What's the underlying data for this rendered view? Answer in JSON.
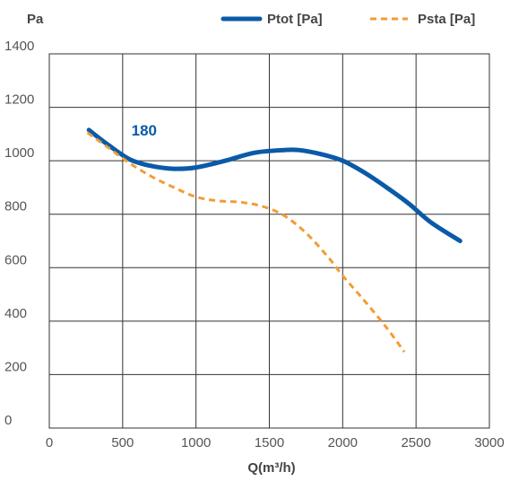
{
  "chart_data": {
    "type": "line",
    "title": "",
    "xlabel": "Q(m³/h)",
    "ylabel": "Pa",
    "xlim": [
      0,
      3000
    ],
    "ylim": [
      0,
      1400
    ],
    "x_ticks": [
      "0",
      "500",
      "1000",
      "1500",
      "2000",
      "2500",
      "3000"
    ],
    "y_ticks": [
      "0",
      "200",
      "400",
      "600",
      "800",
      "1000",
      "1200",
      "1400"
    ],
    "grid": true,
    "legend_position": "top-right",
    "annotation": {
      "text": "180",
      "x": 560,
      "y": 1095,
      "color": "#0a5aa8"
    },
    "series": [
      {
        "name": "Ptot [Pa]",
        "color": "#0a5aa8",
        "style": "solid",
        "points": [
          [
            270,
            1115
          ],
          [
            400,
            1060
          ],
          [
            550,
            1005
          ],
          [
            700,
            980
          ],
          [
            850,
            970
          ],
          [
            1000,
            975
          ],
          [
            1200,
            1000
          ],
          [
            1400,
            1030
          ],
          [
            1600,
            1040
          ],
          [
            1700,
            1040
          ],
          [
            1850,
            1025
          ],
          [
            2000,
            1000
          ],
          [
            2150,
            955
          ],
          [
            2300,
            900
          ],
          [
            2450,
            840
          ],
          [
            2600,
            770
          ],
          [
            2800,
            700
          ]
        ]
      },
      {
        "name": "Psta [Pa]",
        "color": "#f39c33",
        "style": "dashed",
        "points": [
          [
            260,
            1105
          ],
          [
            400,
            1050
          ],
          [
            550,
            990
          ],
          [
            700,
            940
          ],
          [
            850,
            900
          ],
          [
            1000,
            865
          ],
          [
            1150,
            850
          ],
          [
            1300,
            845
          ],
          [
            1450,
            830
          ],
          [
            1600,
            795
          ],
          [
            1750,
            730
          ],
          [
            1900,
            640
          ],
          [
            2000,
            570
          ],
          [
            2150,
            475
          ],
          [
            2300,
            375
          ],
          [
            2420,
            285
          ]
        ]
      }
    ]
  }
}
